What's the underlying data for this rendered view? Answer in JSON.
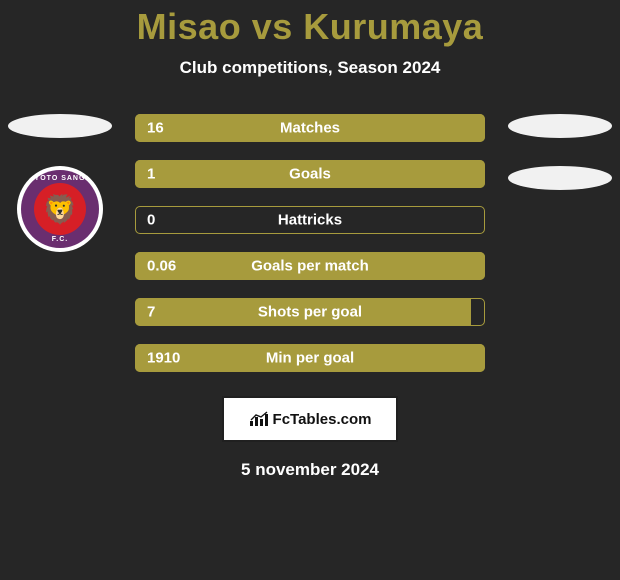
{
  "background_color": "#262626",
  "title": {
    "player1": "Misao",
    "vs": "vs",
    "player2": "Kurumaya",
    "color": "#a79b3d",
    "fontsize": 36
  },
  "subtitle": {
    "text": "Club competitions, Season 2024",
    "color": "#ffffff",
    "fontsize": 17
  },
  "bars": {
    "fill_color": "#a79b3d",
    "border_color": "#a79b3d",
    "text_color": "#ffffff",
    "height": 28,
    "gap": 18,
    "rows": [
      {
        "label": "Matches",
        "left": "16",
        "right": "",
        "fill_pct": 100
      },
      {
        "label": "Goals",
        "left": "1",
        "right": "",
        "fill_pct": 100
      },
      {
        "label": "Hattricks",
        "left": "0",
        "right": "",
        "fill_pct": 0
      },
      {
        "label": "Goals per match",
        "left": "0.06",
        "right": "",
        "fill_pct": 100
      },
      {
        "label": "Shots per goal",
        "left": "7",
        "right": "",
        "fill_pct": 96
      },
      {
        "label": "Min per goal",
        "left": "1910",
        "right": "",
        "fill_pct": 100
      }
    ]
  },
  "left_side": {
    "ellipse_color": "#f1f1f1",
    "logo": {
      "bg": "#6a2e6f",
      "center_bg": "#d61f26",
      "top_text": "KYOTO SANGA",
      "bot_text": "F.C.",
      "glyph": "🦁"
    }
  },
  "right_side": {
    "ellipse1_color": "#f1f1f1",
    "ellipse2_color": "#f1f1f1"
  },
  "badge": {
    "text": "FcTables.com",
    "bg": "#ffffff",
    "border": "#202020",
    "icon_color": "#111111"
  },
  "date": {
    "text": "5 november 2024",
    "color": "#ffffff",
    "fontsize": 17
  }
}
